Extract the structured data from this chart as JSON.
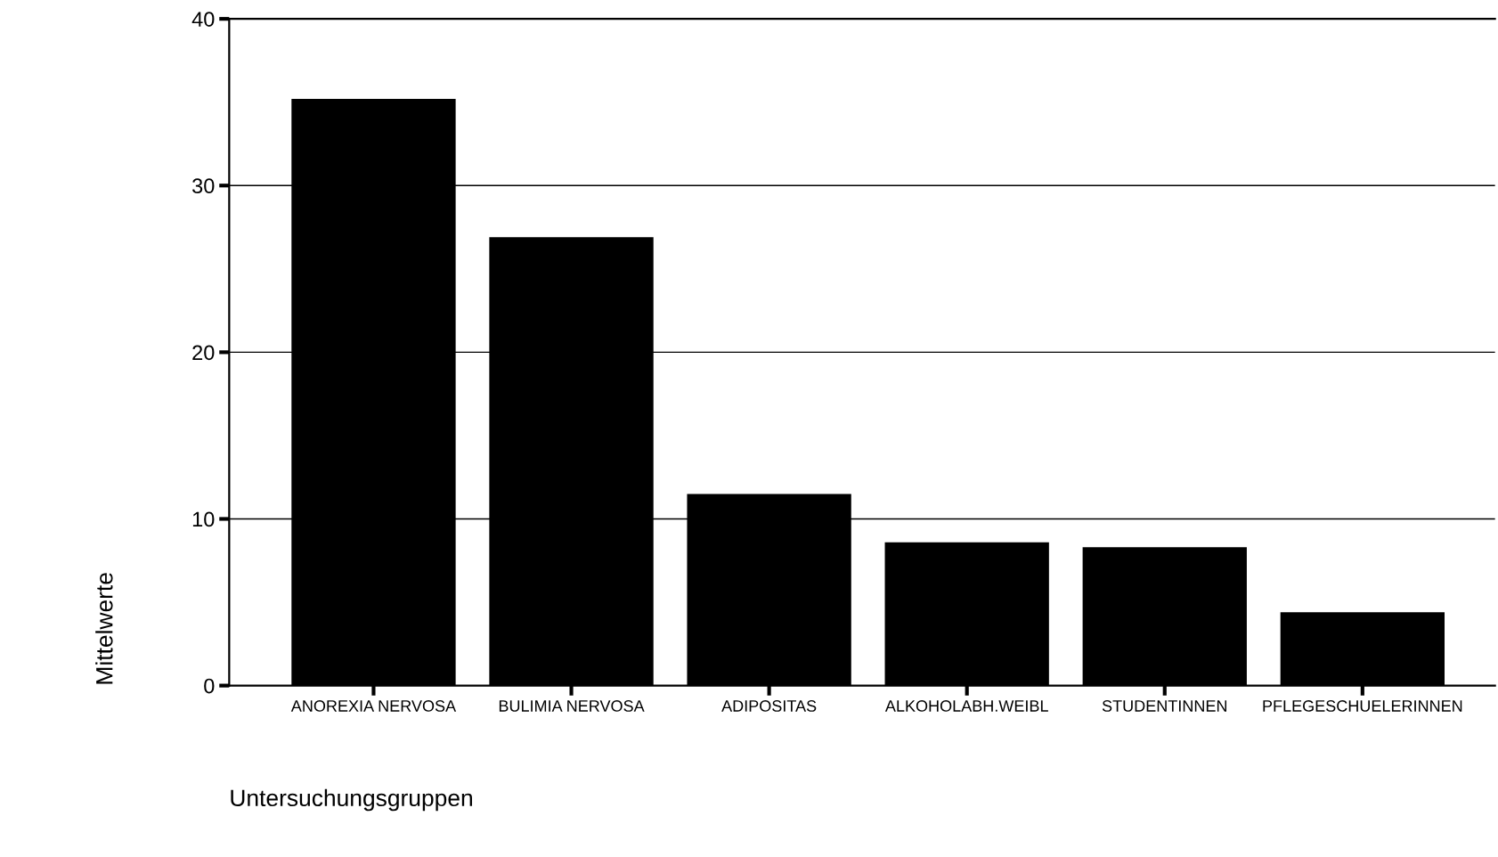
{
  "chart_data": {
    "type": "bar",
    "categories": [
      "ANOREXIA NERVOSA",
      "BULIMIA NERVOSA",
      "ADIPOSITAS",
      "ALKOHOLABH.WEIBL",
      "STUDENTINNEN",
      "PFLEGESCHUELERINNEN"
    ],
    "values": [
      35.2,
      26.9,
      11.5,
      8.6,
      8.3,
      4.4
    ],
    "color": "#000000",
    "xlabel": "Untersuchungsgruppen",
    "ylabel": "Mittelwerte",
    "ylim": [
      0,
      40
    ],
    "yticks": [
      0,
      10,
      20,
      30,
      40
    ],
    "grid": "y"
  }
}
